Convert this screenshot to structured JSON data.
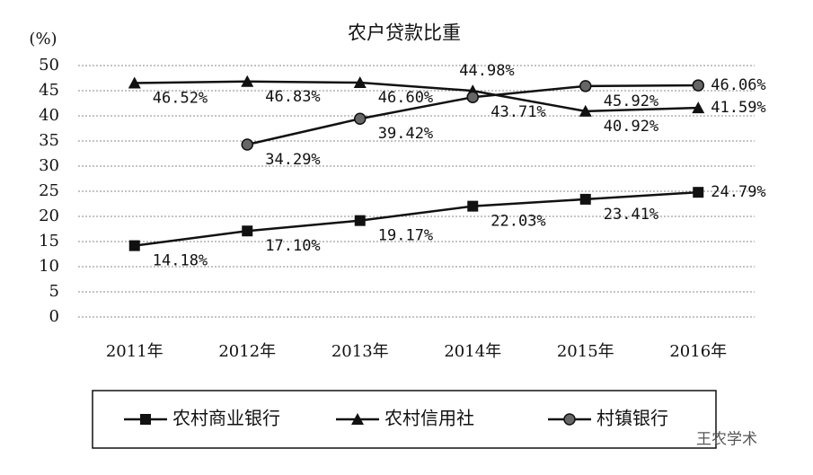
{
  "chart_data": {
    "type": "line",
    "title": "农户贷款比重",
    "y_label": "(%)",
    "categories": [
      "2011年",
      "2012年",
      "2013年",
      "2014年",
      "2015年",
      "2016年"
    ],
    "series": [
      {
        "name": "农村商业银行",
        "color": "#111111",
        "marker": "square",
        "values": [
          14.18,
          17.1,
          19.17,
          22.03,
          23.41,
          24.79
        ],
        "value_labels": [
          "14.18%",
          "17.10%",
          "19.17%",
          "22.03%",
          "23.41%",
          "24.79%"
        ]
      },
      {
        "name": "农村信用社",
        "color": "#111111",
        "marker": "triangle",
        "values": [
          46.52,
          46.83,
          46.6,
          44.98,
          40.92,
          41.59
        ],
        "value_labels": [
          "46.52%",
          "46.83%",
          "46.60%",
          "44.98%",
          "40.92%",
          "41.59%"
        ]
      },
      {
        "name": "村镇银行",
        "color": "#111111",
        "marker": "circle",
        "values": [
          null,
          34.29,
          39.42,
          43.71,
          45.92,
          46.06
        ],
        "value_labels": [
          null,
          "34.29%",
          "39.42%",
          "43.71%",
          "45.92%",
          "46.06%"
        ]
      }
    ],
    "ylim": [
      0,
      50
    ],
    "yticks": [
      0,
      5,
      10,
      15,
      20,
      25,
      30,
      35,
      40,
      45,
      50
    ],
    "grid": true,
    "legend": "bottom",
    "watermark": "王农学术"
  }
}
